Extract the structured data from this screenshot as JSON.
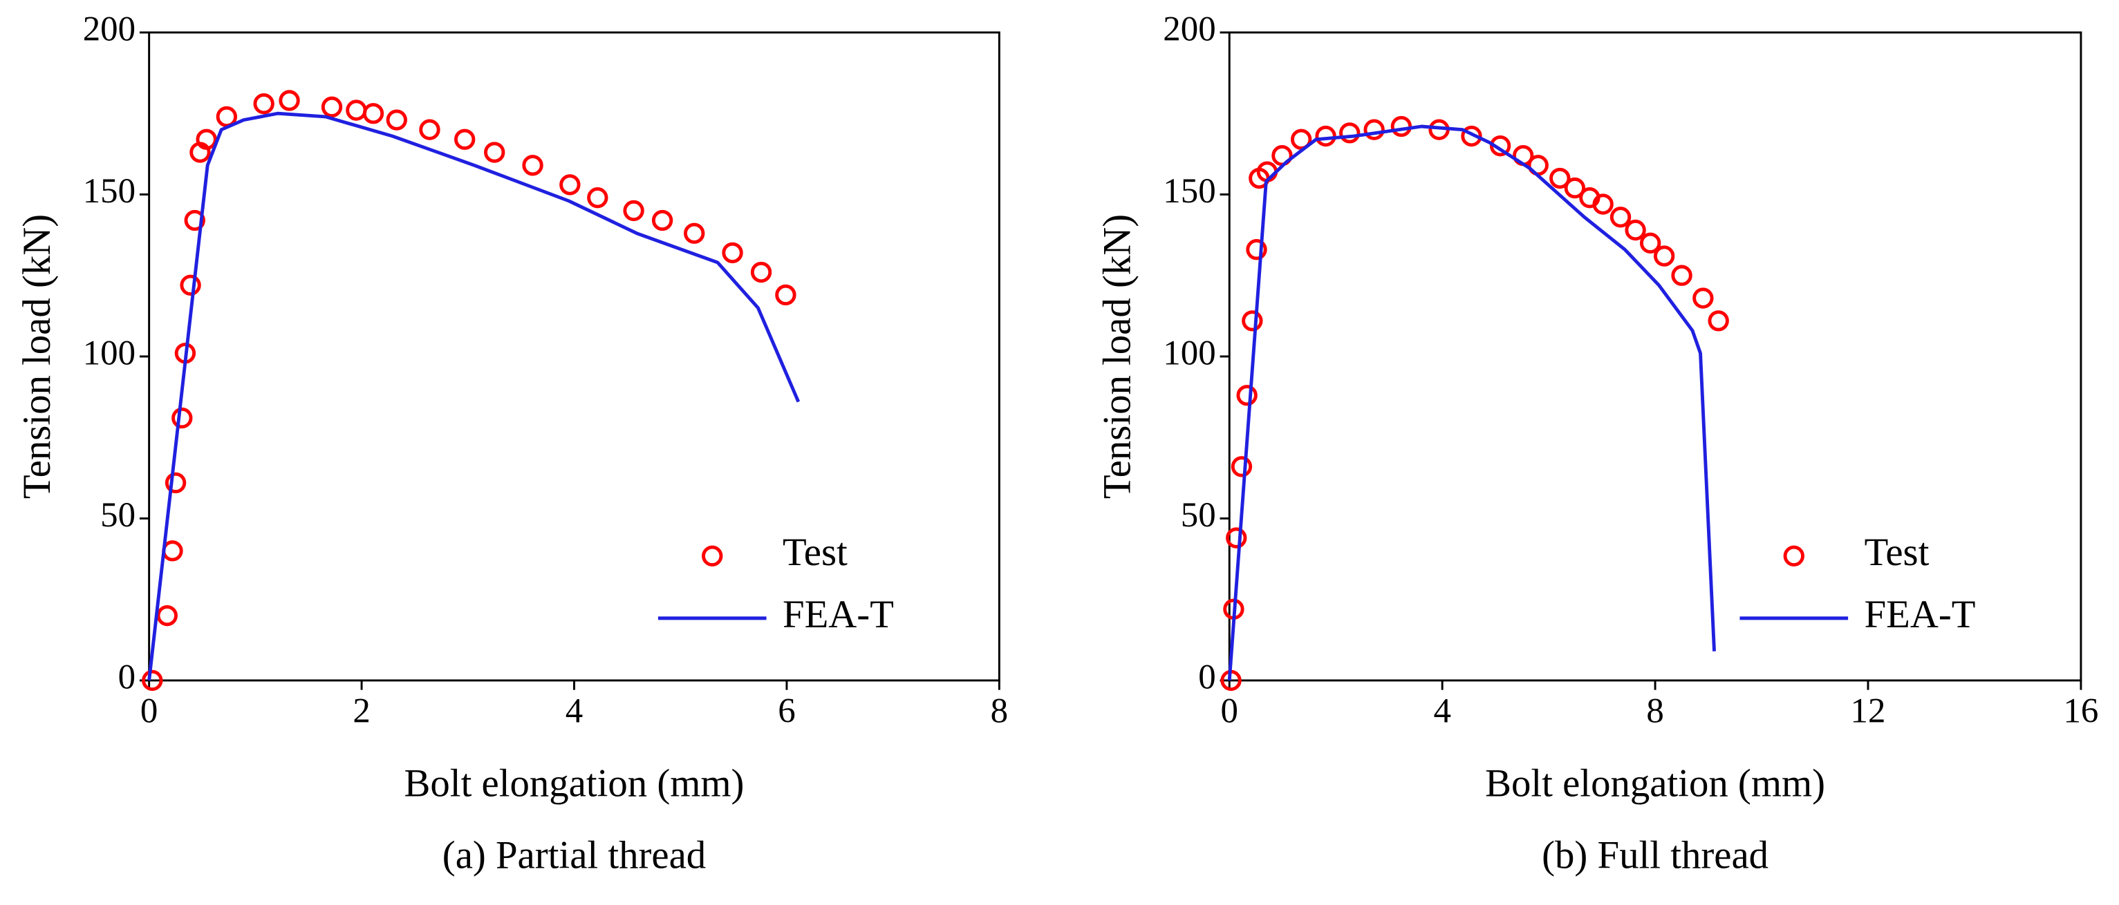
{
  "chart_data": [
    {
      "type": "line",
      "xlabel": "Bolt elongation (mm)",
      "ylabel": "Tension load (kN)",
      "caption": "(a) Partial thread",
      "xlim": [
        0,
        8
      ],
      "xticks": [
        0,
        2,
        4,
        6,
        8
      ],
      "ylim": [
        0,
        200
      ],
      "yticks": [
        0,
        50,
        100,
        150,
        200
      ],
      "legend": "lower right",
      "series": [
        {
          "name": "Test",
          "color": "#ff0000",
          "style": "markers",
          "x": [
            0.03,
            0.17,
            0.22,
            0.25,
            0.31,
            0.34,
            0.39,
            0.43,
            0.48,
            0.54,
            0.73,
            1.08,
            1.32,
            1.72,
            1.95,
            2.11,
            2.33,
            2.64,
            2.97,
            3.25,
            3.61,
            3.96,
            4.22,
            4.56,
            4.83,
            5.13,
            5.49,
            5.76,
            5.99
          ],
          "values": [
            0,
            20,
            40,
            61,
            81,
            101,
            122,
            142,
            163,
            167,
            174,
            178,
            179,
            177,
            176,
            175,
            173,
            170,
            167,
            163,
            159,
            153,
            149,
            145,
            142,
            138,
            132,
            126,
            119
          ]
        },
        {
          "name": "FEA-T",
          "color": "#2020e0",
          "style": "line",
          "x": [
            0,
            0.55,
            0.68,
            0.89,
            1.21,
            1.66,
            2.29,
            3.06,
            3.95,
            4.59,
            5.35,
            5.73,
            6.11
          ],
          "values": [
            0,
            159,
            170,
            173,
            175,
            174,
            168,
            159,
            148,
            138,
            129,
            115,
            86
          ]
        }
      ]
    },
    {
      "type": "line",
      "xlabel": "Bolt elongation (mm)",
      "ylabel": "Tension load (kN)",
      "caption": "(b) Full thread",
      "xlim": [
        0,
        16
      ],
      "xticks": [
        0,
        4,
        8,
        12,
        16
      ],
      "ylim": [
        0,
        200
      ],
      "yticks": [
        0,
        50,
        100,
        150,
        200
      ],
      "legend": "lower right",
      "series": [
        {
          "name": "Test",
          "color": "#ff0000",
          "style": "markers",
          "x": [
            0.03,
            0.08,
            0.13,
            0.23,
            0.33,
            0.43,
            0.51,
            0.56,
            0.71,
            0.99,
            1.35,
            1.81,
            2.26,
            2.72,
            3.23,
            3.94,
            4.55,
            5.09,
            5.52,
            5.8,
            6.21,
            6.49,
            6.77,
            7.02,
            7.35,
            7.63,
            7.91,
            8.17,
            8.5,
            8.9,
            9.19
          ],
          "values": [
            0,
            22,
            44,
            66,
            88,
            111,
            133,
            155,
            157,
            162,
            167,
            168,
            169,
            170,
            171,
            170,
            168,
            165,
            162,
            159,
            155,
            152,
            149,
            147,
            143,
            139,
            135,
            131,
            125,
            118,
            111
          ]
        },
        {
          "name": "FEA-T",
          "color": "#2020e0",
          "style": "line",
          "x": [
            0,
            0.69,
            1.07,
            1.63,
            2.34,
            3.61,
            4.38,
            4.89,
            5.65,
            6.67,
            7.43,
            8.07,
            8.7,
            8.85,
            9.11
          ],
          "values": [
            0,
            154,
            160,
            167,
            168,
            171,
            170,
            166,
            158,
            143,
            133,
            122,
            108,
            101,
            9
          ]
        }
      ]
    }
  ]
}
